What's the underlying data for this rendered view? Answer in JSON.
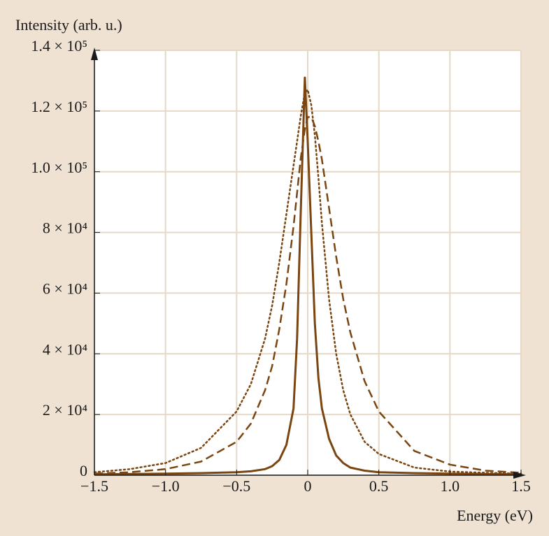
{
  "chart_data": {
    "type": "line",
    "y_label": "Intensity (arb. u.)",
    "x_label": "Energy (eV)",
    "x": [
      -1.5,
      -1.25,
      -1.0,
      -0.75,
      -0.5,
      -0.4,
      -0.3,
      -0.25,
      -0.2,
      -0.15,
      -0.1,
      -0.075,
      -0.05,
      -0.02,
      0,
      0.025,
      0.05,
      0.075,
      0.1,
      0.15,
      0.2,
      0.25,
      0.3,
      0.4,
      0.5,
      0.75,
      1.0,
      1.25,
      1.5
    ],
    "series": [
      {
        "color": "#7a4510",
        "dash": "solid",
        "values": [
          300,
          400,
          500,
          700,
          1000,
          1300,
          2000,
          3000,
          5000,
          10000,
          22000,
          45000,
          85000,
          131000,
          110000,
          80000,
          50000,
          32000,
          22000,
          12000,
          6500,
          4000,
          2500,
          1500,
          1000,
          700,
          500,
          400,
          300
        ]
      },
      {
        "color": "#7a4510",
        "dash": "dashed",
        "values": [
          500,
          1000,
          2000,
          4500,
          11000,
          17000,
          28000,
          36000,
          48000,
          63000,
          82000,
          93000,
          104000,
          114000,
          118000,
          118000,
          115000,
          110000,
          104000,
          88000,
          72000,
          58000,
          47000,
          31000,
          21000,
          8000,
          3500,
          1500,
          800
        ]
      },
      {
        "color": "#7a4510",
        "dash": "dotted",
        "values": [
          1000,
          2000,
          4000,
          9000,
          21000,
          30000,
          45000,
          56000,
          70000,
          86000,
          102000,
          110000,
          118000,
          126000,
          127000,
          122000,
          112000,
          98000,
          83000,
          58000,
          40000,
          28000,
          20000,
          11000,
          7000,
          2500,
          1200,
          800,
          500
        ]
      }
    ],
    "xlim": [
      -1.5,
      1.5
    ],
    "ylim": [
      0,
      140000
    ],
    "xticks": [
      {
        "value": -1.5,
        "label": "−1.5"
      },
      {
        "value": -1.0,
        "label": "−1.0"
      },
      {
        "value": -0.5,
        "label": "−0.5"
      },
      0,
      0.5,
      {
        "value": 1.0,
        "label": "1.0"
      },
      1.5
    ],
    "yticks": [
      0,
      {
        "value": 20000,
        "label": "2 × 10⁴"
      },
      {
        "value": 40000,
        "label": "4 × 10⁴"
      },
      {
        "value": 60000,
        "label": "6 × 10⁴"
      },
      {
        "value": 80000,
        "label": "8 × 10⁴"
      },
      {
        "value": 100000,
        "label": "1.0 × 10⁵"
      },
      {
        "value": 120000,
        "label": "1.2 × 10⁵"
      },
      {
        "value": 140000,
        "label": "1.4 × 10⁵"
      }
    ],
    "grid": true
  }
}
